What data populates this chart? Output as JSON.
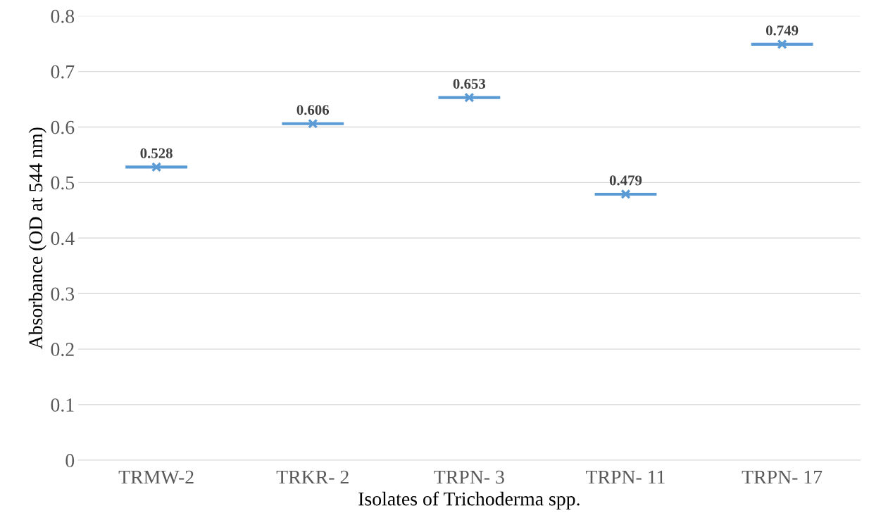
{
  "chart_data": {
    "type": "scatter",
    "xlabel": "Isolates of Trichoderma spp.",
    "ylabel": "Absorbance (OD at 544 nm)",
    "categories": [
      "TRMW-2",
      "TRKR- 2",
      "TRPN- 3",
      "TRPN- 11",
      "TRPN- 17"
    ],
    "series": [
      {
        "color": "#5b9bd5",
        "values": [
          0.528,
          0.606,
          0.653,
          0.479,
          0.749
        ]
      }
    ],
    "ylim": [
      0,
      0.8
    ],
    "yticks": [
      0,
      0.1,
      0.2,
      0.3,
      0.4,
      0.5,
      0.6,
      0.7,
      0.8
    ],
    "grid": "y",
    "marker": "cross",
    "data_labels": true,
    "legend": false
  }
}
